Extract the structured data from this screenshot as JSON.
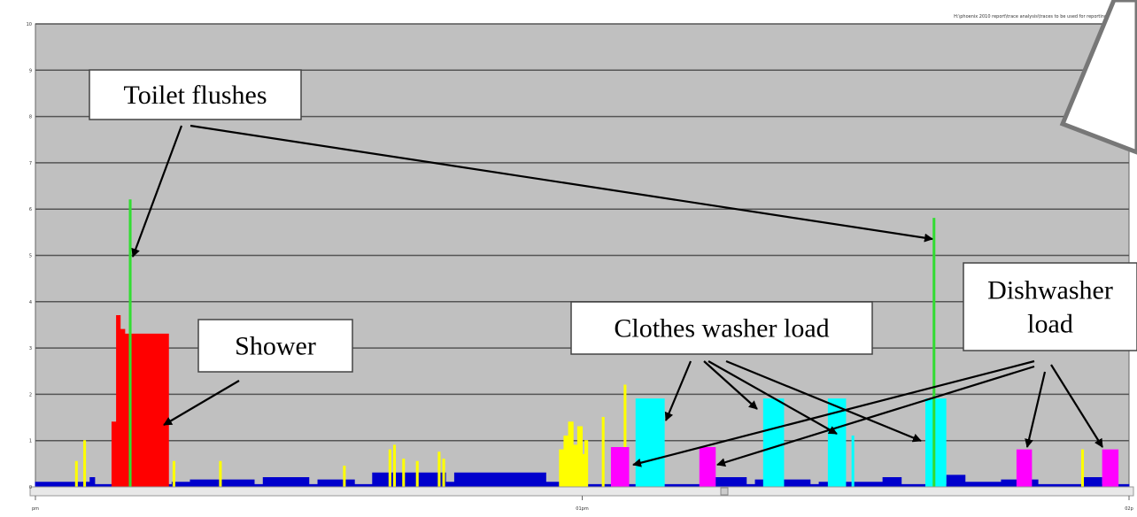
{
  "chart_data": {
    "type": "step-area",
    "path_text": "H:\\phoenix 2010 report\\trace analysis\\traces to be used for reporting\\2",
    "xlim": [
      0,
      120
    ],
    "xticks": [
      {
        "value": 0,
        "label": "pm"
      },
      {
        "value": 60,
        "label": "01pm"
      },
      {
        "value": 120,
        "label": "02p"
      }
    ],
    "ylim": [
      0,
      10
    ],
    "yticks": [
      0,
      1,
      2,
      3,
      4,
      5,
      6,
      7,
      8,
      9,
      10
    ],
    "grid": true,
    "series": [
      {
        "color": "#0000cc",
        "x": [
          0,
          6,
          6.5,
          15,
          17,
          24,
          25,
          30,
          31,
          35,
          37,
          45,
          46,
          56,
          58,
          63,
          74,
          78,
          79,
          85,
          86,
          93,
          95,
          100,
          102,
          106,
          110,
          115,
          117,
          120
        ],
        "values": [
          0.1,
          0.2,
          0.05,
          0.1,
          0.15,
          0.05,
          0.2,
          0.05,
          0.15,
          0.05,
          0.3,
          0.1,
          0.3,
          0.1,
          0.05,
          0.05,
          0.2,
          0.05,
          0.15,
          0.05,
          0.1,
          0.2,
          0.05,
          0.25,
          0.1,
          0.15,
          0.05,
          0.2,
          0.05,
          0
        ]
      },
      {
        "color": "#ffff00",
        "x": [
          4.4,
          4.6,
          5.3,
          5.5,
          12.4,
          12.6,
          15.1,
          15.3,
          20.2,
          20.4,
          33.8,
          34,
          38.8,
          39,
          39.3,
          39.5,
          40.3,
          40.5,
          41.8,
          42,
          44.2,
          44.4,
          44.7,
          44.9,
          57.5,
          58,
          58.5,
          59,
          59.5,
          60,
          60.3,
          60.6,
          62.2,
          62.4,
          64.6,
          64.8,
          114.8,
          115
        ],
        "values": [
          0.55,
          0,
          1.0,
          0,
          3.2,
          0,
          0.55,
          0,
          0.55,
          0,
          0.45,
          0,
          0.8,
          0,
          0.9,
          0,
          0.6,
          0,
          0.55,
          0,
          0.75,
          0,
          0.6,
          0,
          0.8,
          1.1,
          1.4,
          0.9,
          1.3,
          0.7,
          1.0,
          0,
          1.5,
          0,
          2.2,
          0,
          0.8,
          0
        ]
      },
      {
        "color": "#ff0000",
        "x": [
          8.4,
          8.9,
          9.3,
          9.8,
          14.6
        ],
        "values": [
          1.4,
          3.7,
          3.4,
          3.3,
          0
        ]
      },
      {
        "color": "#00ffff",
        "x": [
          65.9,
          69.0,
          79.9,
          82.1,
          87.0,
          88.9,
          89.6,
          89.8,
          97.7,
          99.9
        ],
        "values": [
          1.9,
          0,
          1.9,
          0,
          1.9,
          0,
          1.1,
          0,
          1.9,
          0
        ]
      },
      {
        "color": "#ff00ff",
        "x": [
          63.2,
          65.1,
          72.9,
          74.6,
          107.7,
          109.3,
          117.1,
          118.8
        ],
        "values": [
          0.85,
          0,
          0.85,
          0,
          0.8,
          0,
          0.8,
          0
        ]
      },
      {
        "color": "#33dd33",
        "x": [
          10.3,
          10.5,
          98.5,
          98.7
        ],
        "values": [
          6.2,
          0,
          5.8,
          0
        ]
      }
    ],
    "annotations": [
      {
        "lines": [
          "Toilet flushes"
        ]
      },
      {
        "lines": [
          "Shower"
        ]
      },
      {
        "lines": [
          "Clothes washer load"
        ]
      },
      {
        "lines": [
          "Dishwasher",
          "load"
        ]
      }
    ]
  }
}
